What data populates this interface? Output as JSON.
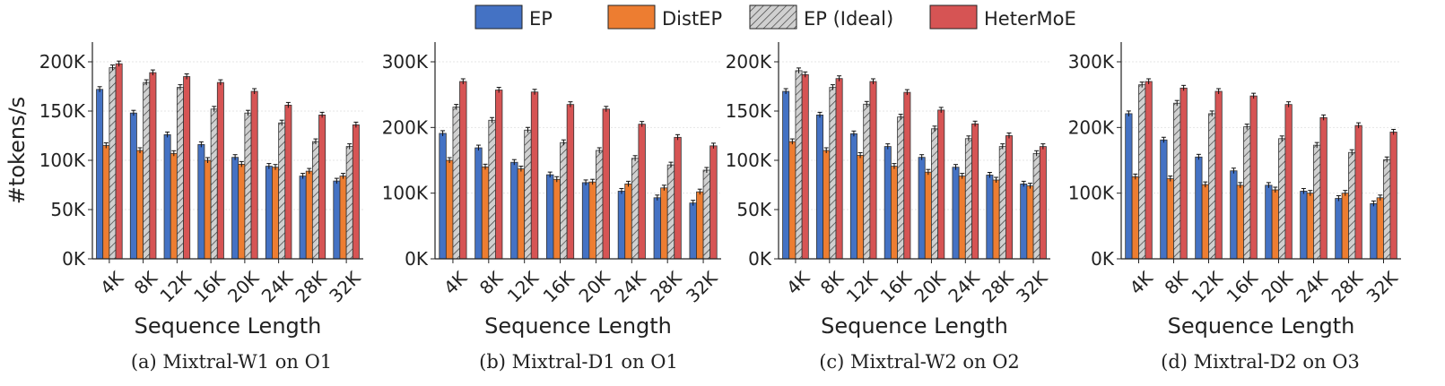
{
  "legend": [
    {
      "name": "EP",
      "color": "#4472C4",
      "hatch": false
    },
    {
      "name": "DistEP",
      "color": "#ED7D31",
      "hatch": false
    },
    {
      "name": "EP (Ideal)",
      "color": "#D0D0D0",
      "hatch": true
    },
    {
      "name": "HeterMoE",
      "color": "#D65454",
      "hatch": false
    }
  ],
  "chart_data": [
    {
      "type": "bar",
      "caption": "(a) Mixtral-W1 on O1",
      "xlabel": "Sequence Length",
      "ylabel": "#tokens/s",
      "ylim": [
        0,
        220000
      ],
      "yticks": [
        0,
        50000,
        100000,
        150000,
        200000
      ],
      "ytick_labels": [
        "0K",
        "50K",
        "100K",
        "150K",
        "200K"
      ],
      "categories": [
        "4K",
        "8K",
        "12K",
        "16K",
        "20K",
        "24K",
        "28K",
        "32K"
      ],
      "series": [
        {
          "name": "EP",
          "values": [
            172000,
            148000,
            126000,
            116000,
            103000,
            94000,
            84000,
            79000
          ]
        },
        {
          "name": "DistEP",
          "values": [
            115000,
            110000,
            107000,
            100000,
            96000,
            93000,
            89000,
            84000
          ]
        },
        {
          "name": "EP (Ideal)",
          "values": [
            194000,
            179000,
            174000,
            152000,
            148000,
            138000,
            119000,
            114000
          ]
        },
        {
          "name": "HeterMoE",
          "values": [
            198000,
            189000,
            185000,
            179000,
            170000,
            156000,
            146000,
            136000
          ]
        }
      ]
    },
    {
      "type": "bar",
      "caption": "(b) Mixtral-D1 on O1",
      "xlabel": "Sequence Length",
      "ylabel": "",
      "ylim": [
        0,
        330000
      ],
      "yticks": [
        0,
        100000,
        200000,
        300000
      ],
      "ytick_labels": [
        "0K",
        "100K",
        "200K",
        "300K"
      ],
      "categories": [
        "4K",
        "8K",
        "12K",
        "16K",
        "20K",
        "24K",
        "28K",
        "32K"
      ],
      "series": [
        {
          "name": "EP",
          "values": [
            191000,
            169000,
            147000,
            128000,
            116000,
            103000,
            93000,
            85000
          ]
        },
        {
          "name": "DistEP",
          "values": [
            150000,
            140000,
            137000,
            121000,
            117000,
            114000,
            108000,
            102000
          ]
        },
        {
          "name": "EP (Ideal)",
          "values": [
            231000,
            211000,
            196000,
            177000,
            165000,
            153000,
            143000,
            135000
          ]
        },
        {
          "name": "HeterMoE",
          "values": [
            270000,
            257000,
            254000,
            235000,
            228000,
            205000,
            185000,
            172000
          ]
        }
      ]
    },
    {
      "type": "bar",
      "caption": "(c) Mixtral-W2 on O2",
      "xlabel": "Sequence Length",
      "ylabel": "",
      "ylim": [
        0,
        220000
      ],
      "yticks": [
        0,
        50000,
        100000,
        150000,
        200000
      ],
      "ytick_labels": [
        "0K",
        "50K",
        "100K",
        "150K",
        "200K"
      ],
      "categories": [
        "4K",
        "8K",
        "12K",
        "16K",
        "20K",
        "24K",
        "28K",
        "32K"
      ],
      "series": [
        {
          "name": "EP",
          "values": [
            170000,
            146000,
            127000,
            114000,
            103000,
            93000,
            85000,
            76000
          ]
        },
        {
          "name": "DistEP",
          "values": [
            119000,
            110000,
            105000,
            94000,
            88000,
            84000,
            80000,
            74000
          ]
        },
        {
          "name": "EP (Ideal)",
          "values": [
            191000,
            174000,
            157000,
            144000,
            132000,
            122000,
            114000,
            107000
          ]
        },
        {
          "name": "HeterMoE",
          "values": [
            187000,
            183000,
            180000,
            169000,
            151000,
            137000,
            125000,
            114000
          ]
        }
      ]
    },
    {
      "type": "bar",
      "caption": "(d) Mixtral-D2 on O3",
      "xlabel": "Sequence Length",
      "ylabel": "",
      "ylim": [
        0,
        330000
      ],
      "yticks": [
        0,
        100000,
        200000,
        300000
      ],
      "ytick_labels": [
        "0K",
        "100K",
        "200K",
        "300K"
      ],
      "categories": [
        "4K",
        "8K",
        "12K",
        "16K",
        "20K",
        "24K",
        "28K",
        "32K"
      ],
      "series": [
        {
          "name": "EP",
          "values": [
            221000,
            181000,
            155000,
            134000,
            112000,
            103000,
            92000,
            84000
          ]
        },
        {
          "name": "DistEP",
          "values": [
            125000,
            122000,
            113000,
            112000,
            105000,
            100000,
            100000,
            93000
          ]
        },
        {
          "name": "EP (Ideal)",
          "values": [
            265000,
            237000,
            221000,
            201000,
            183000,
            173000,
            162000,
            151000
          ]
        },
        {
          "name": "HeterMoE",
          "values": [
            270000,
            260000,
            255000,
            248000,
            235000,
            215000,
            203000,
            193000
          ]
        }
      ]
    }
  ]
}
